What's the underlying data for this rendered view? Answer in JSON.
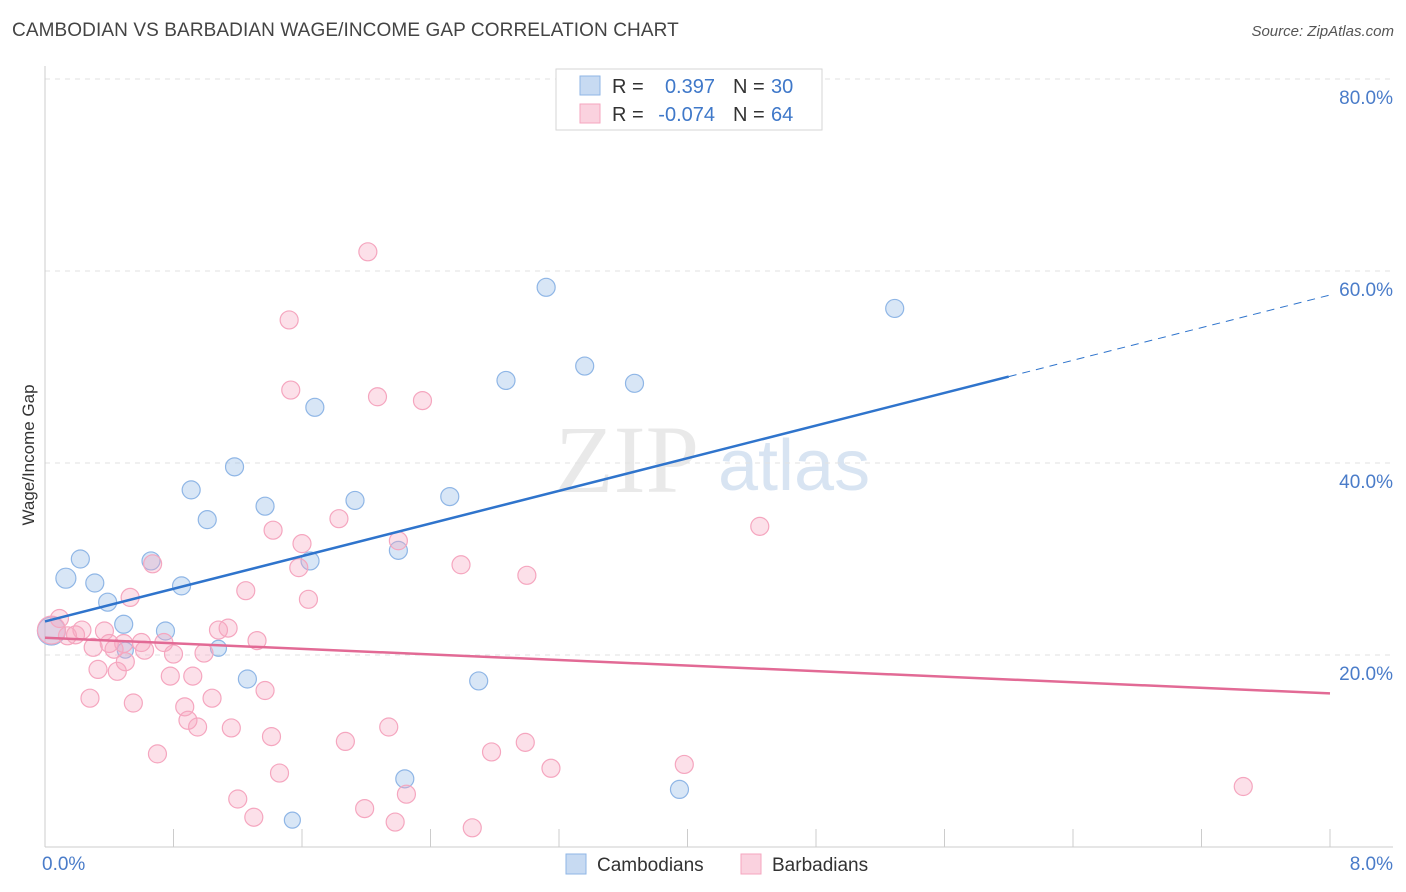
{
  "title": "CAMBODIAN VS BARBADIAN WAGE/INCOME GAP CORRELATION CHART",
  "source": "Source: ZipAtlas.com",
  "watermark": {
    "zip": "ZIP",
    "atlas": "atlas"
  },
  "chart_data": {
    "type": "scatter",
    "xlabel": "",
    "ylabel": "Wage/Income Gap",
    "xlim": [
      0,
      8
    ],
    "ylim": [
      0,
      80
    ],
    "x_tick_labels": {
      "min": "0.0%",
      "max": "8.0%"
    },
    "y_ticks": [
      20,
      40,
      60,
      80
    ],
    "y_tick_labels": [
      "20.0%",
      "40.0%",
      "60.0%",
      "80.0%"
    ],
    "grid": true,
    "legend_position": "top-center",
    "legend": [
      {
        "r_label": "R =",
        "r_value": "0.397",
        "n_label": "N =",
        "n_value": "30"
      },
      {
        "r_label": "R =",
        "r_value": "-0.074",
        "n_label": "N =",
        "n_value": "64"
      }
    ],
    "series": [
      {
        "name": "Cambodians",
        "color": "#8fb6e6",
        "line_color": "#2f74cc",
        "trend": {
          "x0": 0.0,
          "y0": 23.5,
          "x1": 6.0,
          "y1": 49.0,
          "x_ext": 8.0,
          "y_ext": 57.5
        },
        "points": [
          [
            0.04,
            22.5,
            14
          ],
          [
            0.13,
            28,
            10
          ],
          [
            0.22,
            30,
            9
          ],
          [
            0.31,
            27.5,
            9
          ],
          [
            0.39,
            25.5,
            9
          ],
          [
            0.49,
            23.2,
            9
          ],
          [
            0.5,
            20.5,
            8
          ],
          [
            0.66,
            29.8,
            9
          ],
          [
            0.75,
            22.5,
            9
          ],
          [
            0.85,
            27.2,
            9
          ],
          [
            0.91,
            37.2,
            9
          ],
          [
            1.01,
            34.1,
            9
          ],
          [
            1.08,
            20.7,
            8
          ],
          [
            1.18,
            39.6,
            9
          ],
          [
            1.26,
            17.5,
            9
          ],
          [
            1.37,
            35.5,
            9
          ],
          [
            1.54,
            2.8,
            8
          ],
          [
            1.65,
            29.8,
            9
          ],
          [
            1.68,
            45.8,
            9
          ],
          [
            1.93,
            36.1,
            9
          ],
          [
            2.2,
            30.9,
            9
          ],
          [
            2.24,
            7.1,
            9
          ],
          [
            2.52,
            36.5,
            9
          ],
          [
            2.7,
            17.3,
            9
          ],
          [
            2.87,
            48.6,
            9
          ],
          [
            3.12,
            58.3,
            9
          ],
          [
            3.36,
            50.1,
            9
          ],
          [
            3.67,
            48.3,
            9
          ],
          [
            3.95,
            6.0,
            9
          ],
          [
            5.29,
            56.1,
            9
          ]
        ]
      },
      {
        "name": "Barbadians",
        "color": "#f5a6bf",
        "line_color": "#e26a95",
        "trend": {
          "x0": 0.0,
          "y0": 21.8,
          "x1": 8.0,
          "y1": 16.0
        },
        "points": [
          [
            0.04,
            22.6,
            14
          ],
          [
            0.09,
            23.8,
            9
          ],
          [
            0.14,
            22.0,
            9
          ],
          [
            0.19,
            22.1,
            9
          ],
          [
            0.23,
            22.6,
            9
          ],
          [
            0.28,
            15.5,
            9
          ],
          [
            0.3,
            20.8,
            9
          ],
          [
            0.33,
            18.5,
            9
          ],
          [
            0.37,
            22.5,
            9
          ],
          [
            0.4,
            21.2,
            9
          ],
          [
            0.43,
            20.6,
            9
          ],
          [
            0.45,
            18.3,
            9
          ],
          [
            0.49,
            21.2,
            9
          ],
          [
            0.5,
            19.3,
            9
          ],
          [
            0.53,
            26.0,
            9
          ],
          [
            0.55,
            15.0,
            9
          ],
          [
            0.6,
            21.3,
            9
          ],
          [
            0.62,
            20.5,
            9
          ],
          [
            0.67,
            29.5,
            9
          ],
          [
            0.7,
            9.7,
            9
          ],
          [
            0.74,
            21.3,
            9
          ],
          [
            0.78,
            17.8,
            9
          ],
          [
            0.8,
            20.1,
            9
          ],
          [
            0.87,
            14.6,
            9
          ],
          [
            0.89,
            13.2,
            9
          ],
          [
            0.92,
            17.8,
            9
          ],
          [
            0.95,
            12.5,
            9
          ],
          [
            0.99,
            20.2,
            9
          ],
          [
            1.04,
            15.5,
            9
          ],
          [
            1.08,
            22.6,
            9
          ],
          [
            1.14,
            22.8,
            9
          ],
          [
            1.16,
            12.4,
            9
          ],
          [
            1.2,
            5.0,
            9
          ],
          [
            1.25,
            26.7,
            9
          ],
          [
            1.3,
            3.1,
            9
          ],
          [
            1.32,
            21.5,
            9
          ],
          [
            1.37,
            16.3,
            9
          ],
          [
            1.41,
            11.5,
            9
          ],
          [
            1.42,
            33.0,
            9
          ],
          [
            1.46,
            7.7,
            9
          ],
          [
            1.52,
            54.9,
            9
          ],
          [
            1.53,
            47.6,
            9
          ],
          [
            1.58,
            29.1,
            9
          ],
          [
            1.6,
            31.6,
            9
          ],
          [
            1.64,
            25.8,
            9
          ],
          [
            1.83,
            34.2,
            9
          ],
          [
            1.87,
            11.0,
            9
          ],
          [
            1.99,
            4.0,
            9
          ],
          [
            2.01,
            62.0,
            9
          ],
          [
            2.07,
            46.9,
            9
          ],
          [
            2.14,
            12.5,
            9
          ],
          [
            2.18,
            2.6,
            9
          ],
          [
            2.2,
            31.9,
            9
          ],
          [
            2.25,
            5.5,
            9
          ],
          [
            2.35,
            46.5,
            9
          ],
          [
            2.59,
            29.4,
            9
          ],
          [
            2.66,
            2.0,
            9
          ],
          [
            2.78,
            9.9,
            9
          ],
          [
            2.99,
            10.9,
            9
          ],
          [
            3.0,
            28.3,
            9
          ],
          [
            3.15,
            8.2,
            9
          ],
          [
            3.98,
            8.6,
            9
          ],
          [
            4.45,
            33.4,
            9
          ],
          [
            7.46,
            6.3,
            9
          ]
        ]
      }
    ]
  }
}
